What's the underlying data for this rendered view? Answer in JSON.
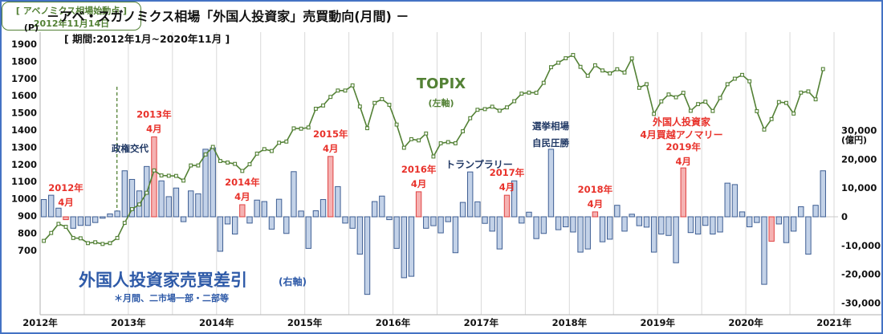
{
  "title": "－アベ・スガノミクス相場「外国人投資家」売買動向(月間) －",
  "subtitle": "[ 期間:2012年1月~2020年11月 ]",
  "left_axis": {
    "unit": "(P)",
    "max": 1900,
    "min": 700,
    "step": 100
  },
  "right_axis": {
    "unit": "(億円)",
    "max": 30000,
    "min": -30000,
    "step": 10000
  },
  "x_axis": {
    "labels": [
      "2012年",
      "2013年",
      "2014年",
      "2015年",
      "2016年",
      "2017年",
      "2018年",
      "2019年",
      "2020年",
      "2021年"
    ]
  },
  "series": {
    "topix_label": "TOPIX",
    "topix_axis_note": "(左軸)",
    "flow_label": "外国人投資家売買差引",
    "flow_axis_note": "(右軸)",
    "flow_footnote": "＊月間、二市場一部・二部等"
  },
  "annotations": {
    "abenomics_line1": "[ アベノミクス相場始動点 ]",
    "abenomics_line2": "2012年11月14日",
    "abenomics_date_x": "2012-11-14",
    "seiken_koutai": "政権交代",
    "trump_rally": "トランプラリー",
    "election_line1": "選挙相場",
    "election_line2": "自民圧勝",
    "anomaly_line1": "外国人投資家",
    "anomaly_line2": "4月買越アノマリー",
    "april_label_years": [
      "2012年",
      "2013年",
      "2014年",
      "2015年",
      "2016年",
      "2017年",
      "2018年",
      "2019年"
    ],
    "april_label_month": "4月"
  },
  "colors": {
    "topix_line": "#538135",
    "bar_fill": "#c3d2e8",
    "bar_stroke": "#3f5f94",
    "april_bar_fill": "#f5b2b2",
    "april_bar_stroke": "#e04343",
    "red_text": "#e8312a",
    "navy_text": "#203864",
    "blue_text": "#2e5aa8",
    "green_text": "#538135",
    "gridline": "#d9d9d9",
    "axis_line": "#bfbfbf",
    "frame": "#4472c4"
  },
  "chart_data": {
    "type": "bar+line",
    "period_start": "2012-01",
    "period_end": "2020-11",
    "bars_name": "外国人投資家売買差引(億円・右軸)",
    "line_name": "TOPIX(P・左軸)",
    "april_bar_indices": [
      3,
      15,
      27,
      39,
      51,
      63,
      75,
      87,
      99
    ],
    "bars_oku_yen": [
      6000,
      7500,
      3000,
      -1000,
      -4000,
      -3000,
      -3000,
      -2000,
      -500,
      1000,
      2000,
      16000,
      13000,
      9000,
      17500,
      27800,
      12500,
      7000,
      10000,
      -1700,
      9000,
      8000,
      23500,
      24000,
      -12000,
      -2500,
      -6000,
      4200,
      -2200,
      5800,
      5300,
      -4300,
      6100,
      -5800,
      15700,
      2000,
      -11000,
      2100,
      6000,
      21000,
      10500,
      -2200,
      -4000,
      -13000,
      -27000,
      5300,
      7200,
      -1000,
      -11000,
      -21200,
      -20700,
      8700,
      -4000,
      -3100,
      -5600,
      -1700,
      -12500,
      5000,
      15600,
      5200,
      -2300,
      -5000,
      -11200,
      7500,
      12500,
      -2200,
      1600,
      -7600,
      -5800,
      23500,
      -4500,
      -3500,
      -5300,
      -12300,
      -11200,
      1700,
      -8700,
      -7800,
      4000,
      -5000,
      900,
      -3100,
      -3600,
      -12300,
      -6000,
      -6500,
      -16000,
      17000,
      -5500,
      -6000,
      -3000,
      -6000,
      -5300,
      11700,
      11200,
      1700,
      -3500,
      -2000,
      -23500,
      -8500,
      -2500,
      -9000,
      -5000,
      3500,
      -13000,
      4000,
      16000
    ],
    "topix": [
      755,
      801,
      854,
      837,
      772,
      770,
      742,
      747,
      737,
      742,
      772,
      860,
      940,
      967,
      1035,
      1165,
      1136,
      1134,
      1133,
      1106,
      1194,
      1194,
      1258,
      1302,
      1220,
      1211,
      1203,
      1162,
      1201,
      1263,
      1289,
      1278,
      1326,
      1333,
      1410,
      1408,
      1415,
      1524,
      1543,
      1593,
      1630,
      1630,
      1660,
      1537,
      1411,
      1558,
      1580,
      1547,
      1432,
      1297,
      1347,
      1340,
      1380,
      1246,
      1323,
      1330,
      1323,
      1393,
      1469,
      1518,
      1522,
      1536,
      1513,
      1532,
      1568,
      1612,
      1618,
      1617,
      1675,
      1766,
      1792,
      1818,
      1837,
      1768,
      1716,
      1777,
      1747,
      1730,
      1754,
      1735,
      1817,
      1646,
      1667,
      1494,
      1567,
      1607,
      1591,
      1617,
      1512,
      1551,
      1565,
      1511,
      1587,
      1667,
      1699,
      1721,
      1684,
      1510,
      1403,
      1464,
      1563,
      1558,
      1496,
      1618,
      1625,
      1579,
      1755
    ]
  }
}
